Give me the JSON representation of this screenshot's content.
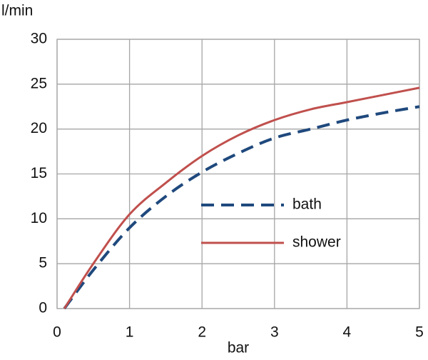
{
  "chart_data": {
    "type": "line",
    "y_label": "l/min",
    "x_label": "bar",
    "x": [
      0.1,
      0.5,
      1,
      1.5,
      2,
      2.5,
      3,
      3.5,
      4,
      4.5,
      5
    ],
    "series": [
      {
        "name": "bath",
        "color": "#1f497d",
        "dashed": true,
        "values": [
          0,
          4.3,
          9,
          12.5,
          15.2,
          17.3,
          19,
          20,
          21,
          21.8,
          22.5
        ]
      },
      {
        "name": "shower",
        "color": "#c0504d",
        "dashed": false,
        "values": [
          0,
          5,
          10.5,
          14,
          17,
          19.3,
          21,
          22.2,
          23,
          23.8,
          24.6
        ]
      }
    ],
    "xlim": [
      0,
      5
    ],
    "ylim": [
      0,
      30
    ],
    "xticks": [
      0,
      1,
      2,
      3,
      4,
      5
    ],
    "yticks": [
      0,
      5,
      10,
      15,
      20,
      25,
      30
    ],
    "grid": true,
    "legend": "center"
  }
}
